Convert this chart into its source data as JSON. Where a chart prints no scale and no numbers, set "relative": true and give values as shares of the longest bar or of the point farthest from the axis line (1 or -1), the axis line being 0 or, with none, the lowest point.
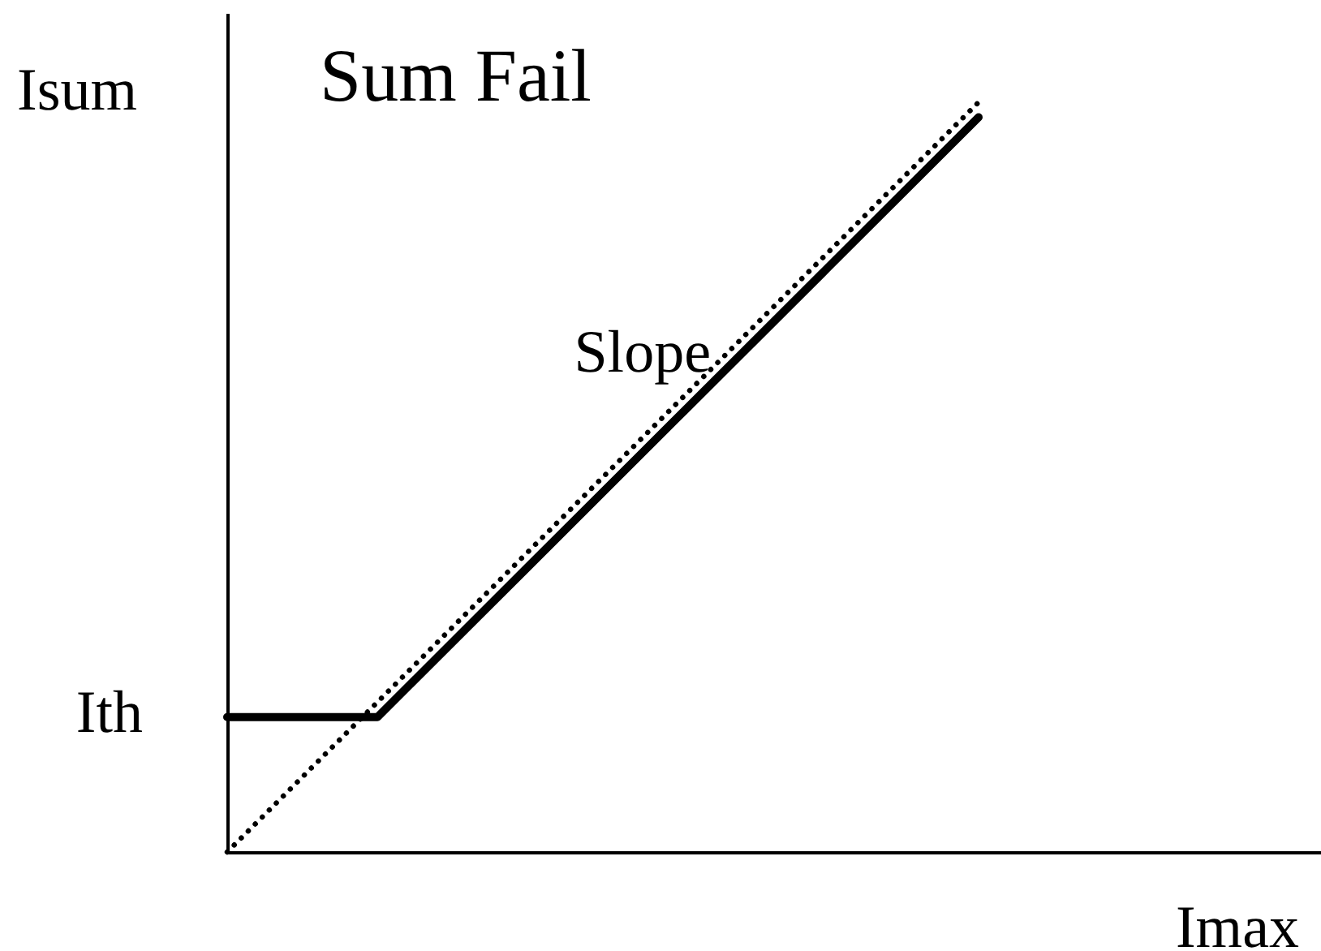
{
  "chart_data": {
    "type": "line",
    "title": "Sum Fail",
    "ylabel": "Isum",
    "xlabel": "Imax",
    "relative": true,
    "categories": [
      null,
      null,
      null,
      null,
      null,
      null
    ],
    "series": [
      {
        "color": "#000000",
        "line_style": "solid",
        "values": [
          0.18,
          0.18,
          0.38,
          0.58,
          0.78,
          0.98
        ]
      },
      {
        "color": "#000000",
        "line_style": "dotted",
        "values": [
          0,
          0.2,
          0.4,
          0.6,
          0.8,
          1
        ]
      }
    ],
    "annotations": [
      "Ith",
      "Slope"
    ]
  }
}
